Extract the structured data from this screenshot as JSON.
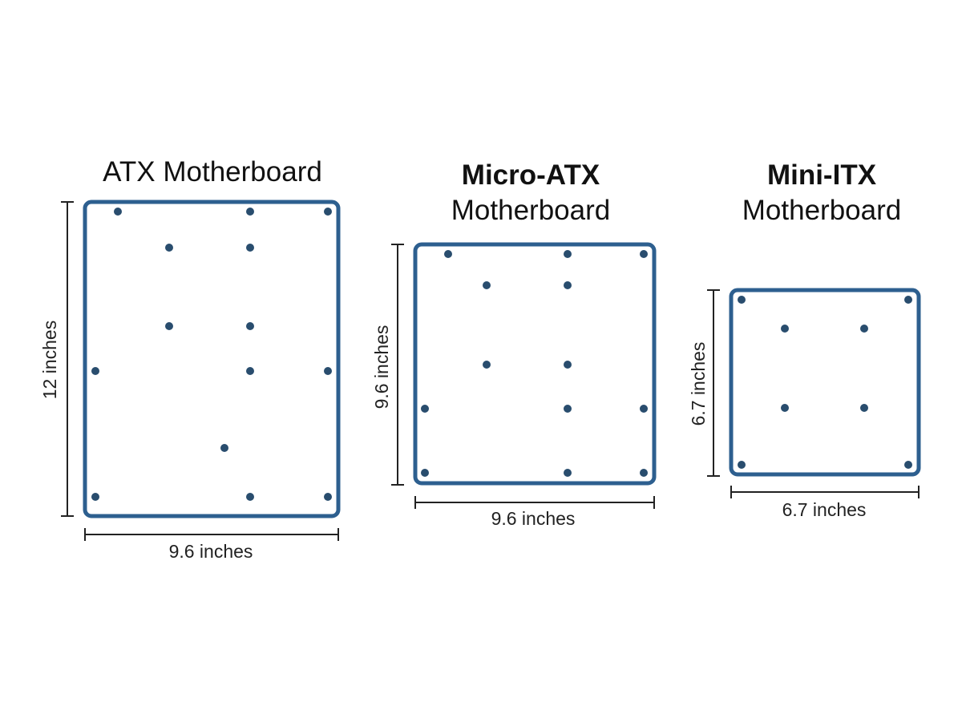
{
  "colors": {
    "board": "#2d5f8f",
    "hole": "#294d6e",
    "dimension": "#222222"
  },
  "boards": [
    {
      "name": "ATX Motherboard",
      "title_bold": "",
      "title_normal": "ATX Motherboard",
      "width_label": "9.6 inches",
      "height_label": "12 inches",
      "width_in": 9.6,
      "height_in": 12
    },
    {
      "name": "Micro-ATX Motherboard",
      "title_bold": "Micro-ATX",
      "title_normal": "Motherboard",
      "width_label": "9.6 inches",
      "height_label": "9.6 inches",
      "width_in": 9.6,
      "height_in": 9.6
    },
    {
      "name": "Mini-ITX Motherboard",
      "title_bold": "Mini-ITX",
      "title_normal": "Motherboard",
      "width_label": "6.7 inches",
      "height_label": "6.7 inches",
      "width_in": 6.7,
      "height_in": 6.7
    }
  ]
}
